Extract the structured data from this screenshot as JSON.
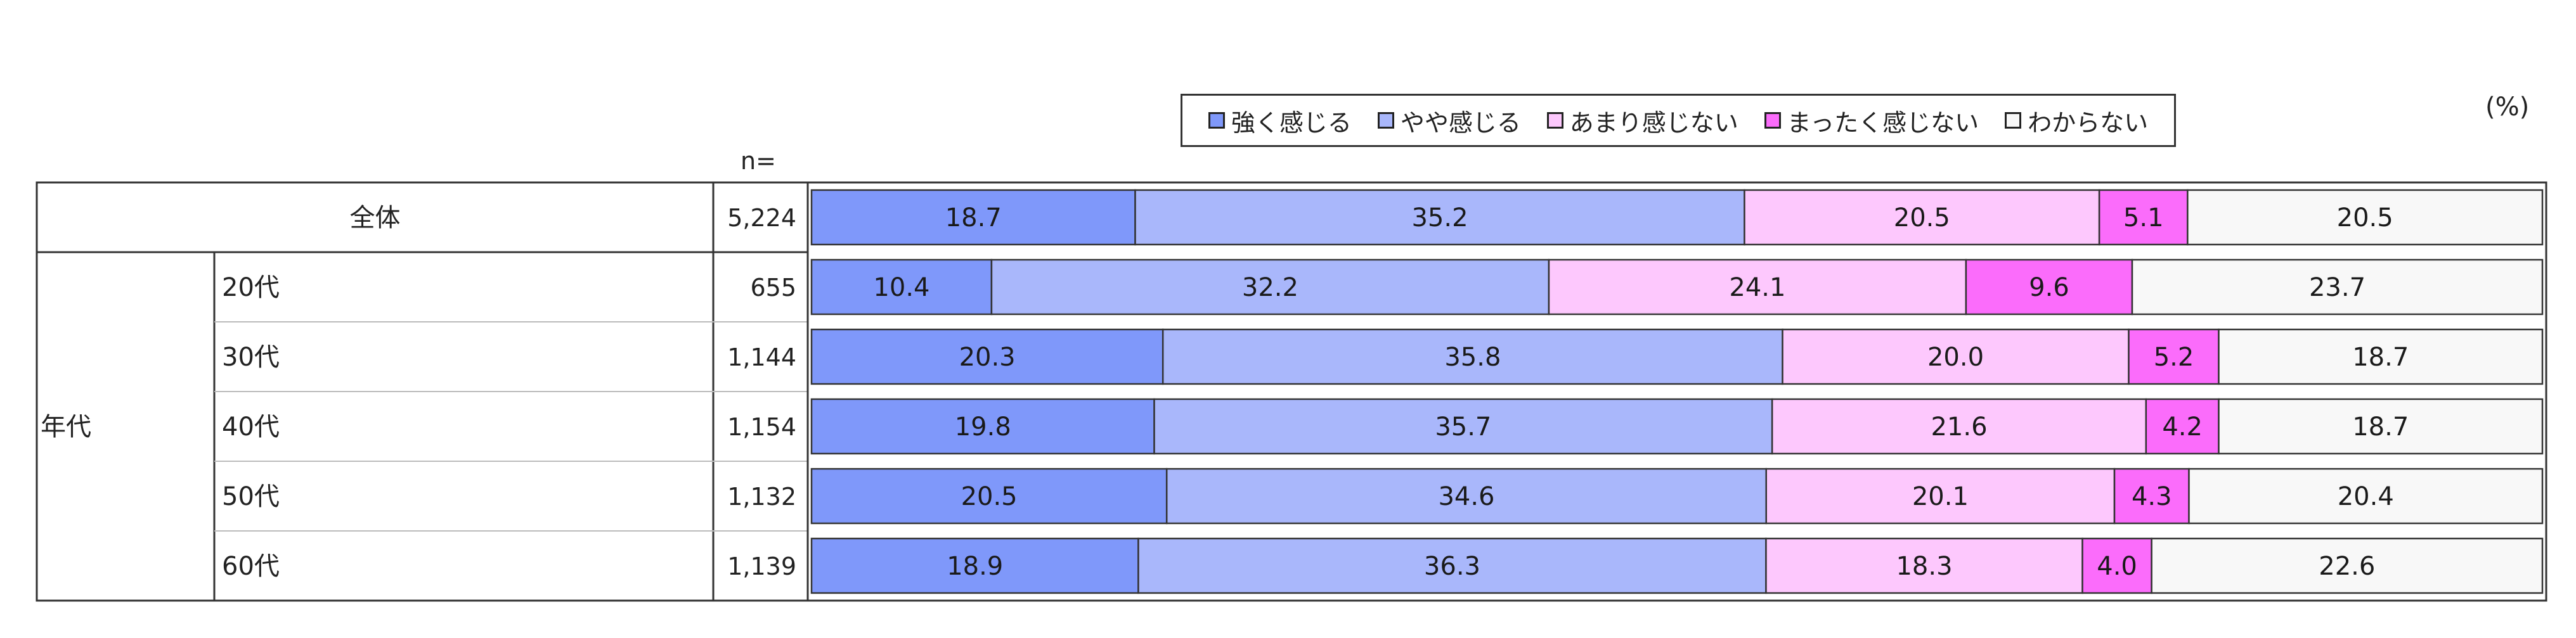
{
  "chart_data": {
    "type": "bar",
    "orientation": "horizontal",
    "stacked": true,
    "unit": "(%)",
    "n_header": "n=",
    "legend_position": "top",
    "series": [
      {
        "name": "強く感じる",
        "color": "#7f98fa",
        "values": [
          18.7,
          10.4,
          20.3,
          19.8,
          20.5,
          18.9
        ]
      },
      {
        "name": "やや感じる",
        "color": "#a9b7fb",
        "values": [
          35.2,
          32.2,
          35.8,
          35.7,
          34.6,
          36.3
        ]
      },
      {
        "name": "あまり感じない",
        "color": "#fdc8fd",
        "values": [
          20.5,
          24.1,
          20.0,
          21.6,
          20.1,
          18.3
        ]
      },
      {
        "name": "まったく感じない",
        "color": "#fb6cfb",
        "values": [
          5.1,
          9.6,
          5.2,
          4.2,
          4.3,
          4.0
        ]
      },
      {
        "name": "わからない",
        "color": "#f8f8f8",
        "values": [
          20.5,
          23.7,
          18.7,
          18.7,
          20.4,
          22.6
        ]
      }
    ],
    "rows": [
      {
        "group": "",
        "label": "全体",
        "n": "5,224"
      },
      {
        "group": "年代",
        "label": "20代",
        "n": "655"
      },
      {
        "group": "年代",
        "label": "30代",
        "n": "1,144"
      },
      {
        "group": "年代",
        "label": "40代",
        "n": "1,154"
      },
      {
        "group": "年代",
        "label": "50代",
        "n": "1,132"
      },
      {
        "group": "年代",
        "label": "60代",
        "n": "1,139"
      }
    ],
    "group_label": "年代",
    "xlim": [
      0,
      100
    ]
  }
}
